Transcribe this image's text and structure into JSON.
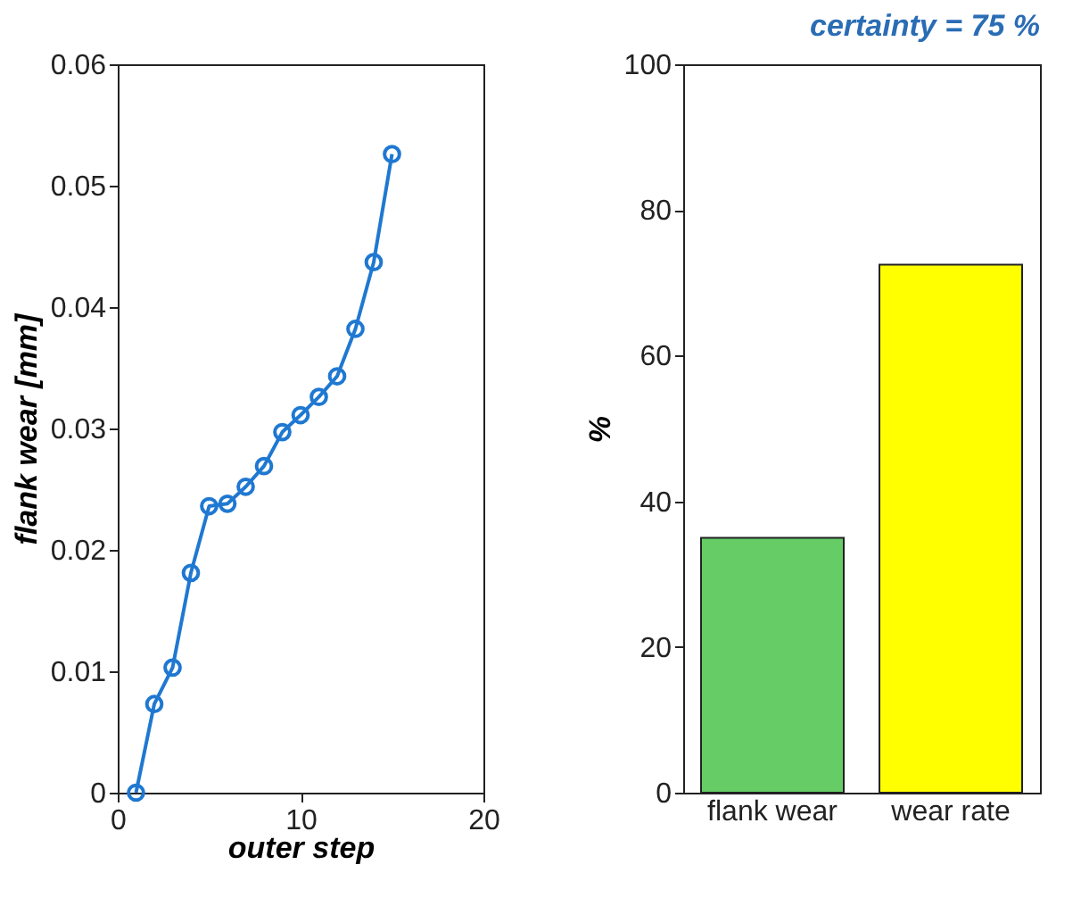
{
  "chart_data": [
    {
      "type": "line",
      "xlabel": "outer step",
      "ylabel": "flank wear [mm]",
      "x": [
        1,
        2,
        3,
        4,
        5,
        6,
        7,
        8,
        9,
        10,
        11,
        12,
        13,
        14,
        15
      ],
      "series": [
        {
          "color": "#1f78d1",
          "values": [
            0,
            0.0073,
            0.0103,
            0.0181,
            0.0236,
            0.0238,
            0.0252,
            0.0269,
            0.0297,
            0.0311,
            0.0326,
            0.0343,
            0.0382,
            0.0437,
            0.0526
          ]
        }
      ],
      "xlim": [
        0,
        20
      ],
      "xticks": [
        0,
        10,
        20
      ],
      "ylim": [
        0,
        0.06
      ],
      "yticks": [
        0,
        0.01,
        0.02,
        0.03,
        0.04,
        0.05,
        0.06
      ],
      "marker": "circle",
      "grid": false
    },
    {
      "type": "bar",
      "title": "certainty = 75 %",
      "ylabel": "%",
      "categories": [
        "flank wear",
        "wear rate"
      ],
      "values": [
        35,
        72.5
      ],
      "colors": [
        "#66cc66",
        "#ffff00"
      ],
      "ylim": [
        0,
        100
      ],
      "yticks": [
        0,
        20,
        40,
        60,
        80,
        100
      ],
      "grid": false,
      "legend": false
    }
  ]
}
